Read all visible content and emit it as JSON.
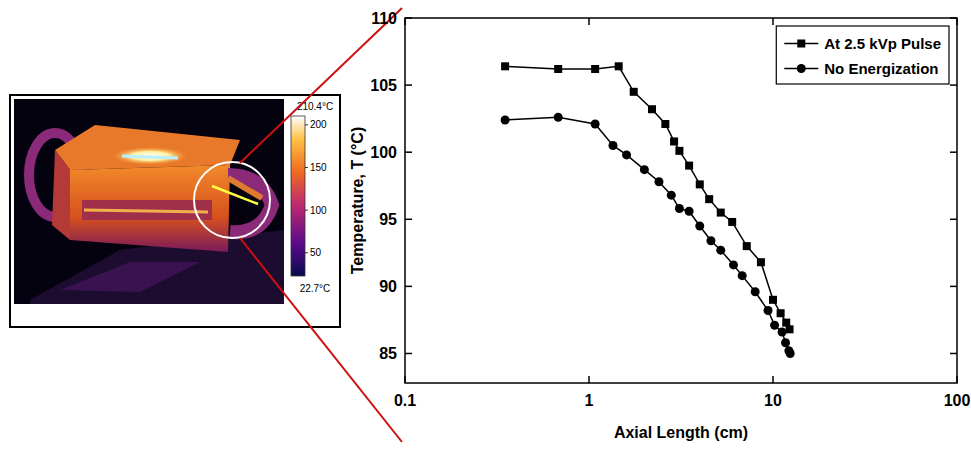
{
  "chart_data": [
    {
      "type": "thermal_image",
      "colorbar_range": [
        22.7,
        210.4
      ],
      "colorbar_range_labels": [
        "22.7°C",
        "210.4°C"
      ],
      "colorbar_ticks": [
        50,
        100,
        150,
        200
      ]
    },
    {
      "type": "line",
      "x_label": "Axial Length (cm)",
      "y_label": "Temperature, T (°C)",
      "log": "x",
      "grid": false,
      "legend": "top-right",
      "xlim": [
        0.1,
        100
      ],
      "xticks": [
        0.1,
        1,
        10,
        100
      ],
      "ylim": [
        82.8,
        110
      ],
      "yticks": [
        85,
        90,
        95,
        100,
        105,
        110
      ],
      "series": [
        {
          "name": "At 2.5 kVp Pulse",
          "color": "#000000",
          "marker": "square",
          "line_style": "solid",
          "x": [
            0.35,
            0.68,
            1.08,
            1.45,
            1.75,
            2.2,
            2.6,
            2.9,
            3.1,
            3.5,
            4.0,
            4.5,
            5.2,
            6.0,
            7.2,
            8.6,
            10.0,
            11.0,
            11.8,
            12.3
          ],
          "values": [
            106.4,
            106.2,
            106.2,
            106.4,
            104.5,
            103.2,
            102.1,
            100.8,
            100.1,
            99.0,
            97.6,
            96.5,
            95.5,
            94.8,
            93.0,
            91.8,
            89.0,
            88.0,
            87.3,
            86.8
          ]
        },
        {
          "name": "No Energization",
          "color": "#000000",
          "marker": "circle",
          "line_style": "solid",
          "x": [
            0.35,
            0.68,
            1.08,
            1.35,
            1.6,
            2.0,
            2.4,
            2.8,
            3.1,
            3.5,
            4.0,
            4.6,
            5.2,
            6.1,
            6.8,
            8.0,
            9.4,
            10.2,
            11.2,
            11.7,
            12.2,
            12.4
          ],
          "values": [
            102.4,
            102.6,
            102.1,
            100.5,
            99.8,
            98.7,
            97.8,
            96.8,
            95.8,
            95.6,
            94.5,
            93.4,
            92.7,
            91.6,
            90.8,
            89.6,
            88.2,
            87.1,
            86.6,
            85.8,
            85.2,
            85.0
          ]
        }
      ]
    }
  ]
}
